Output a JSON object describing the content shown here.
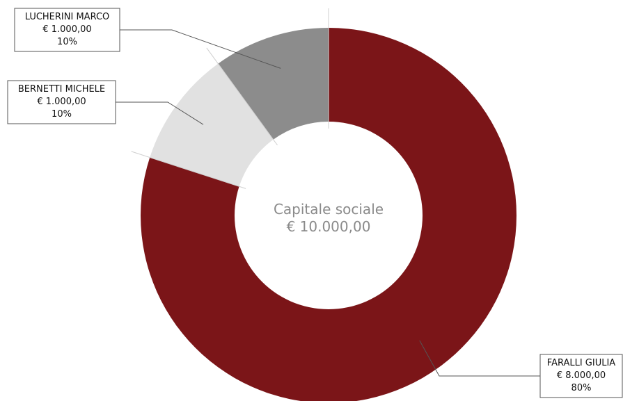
{
  "chart_data": {
    "type": "pie",
    "subtype": "donut",
    "center_label": {
      "title": "Capitale sociale",
      "value": "€ 10.000,00"
    },
    "slices": [
      {
        "name": "FARALLI GIULIA",
        "amount": "€ 8.000,00",
        "percent_label": "80%",
        "value": 8000,
        "color": "#7b1518"
      },
      {
        "name": "BERNETTI MICHELE",
        "amount": "€ 1.000,00",
        "percent_label": "10%",
        "value": 1000,
        "color": "#e1e1e1"
      },
      {
        "name": "LUCHERINI MARCO",
        "amount": "€ 1.000,00",
        "percent_label": "10%",
        "value": 1000,
        "color": "#8c8c8c"
      }
    ]
  }
}
